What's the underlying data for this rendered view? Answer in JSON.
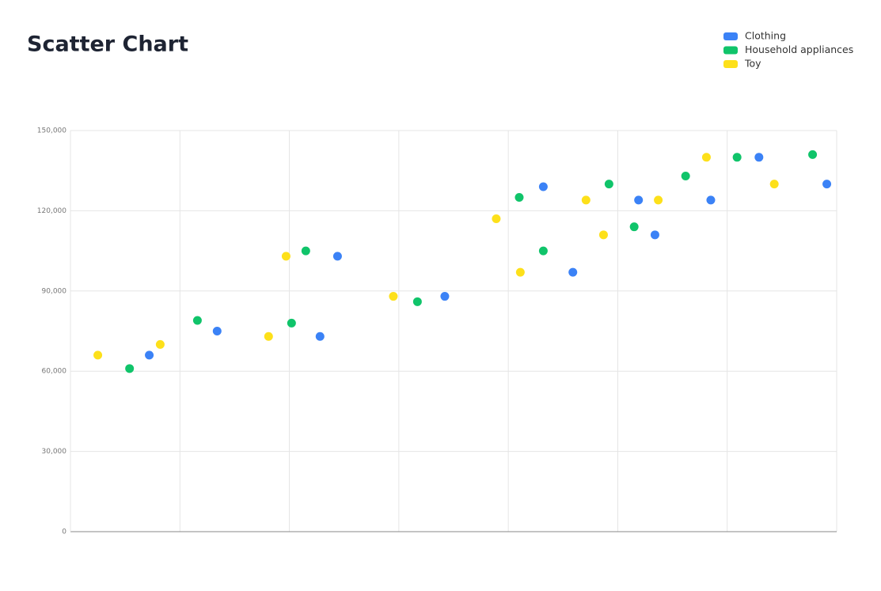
{
  "chart_data": {
    "type": "scatter",
    "title": "Scatter Chart",
    "xlim": [
      0,
      7
    ],
    "ylim": [
      0,
      150000
    ],
    "yticks": [
      0,
      {
        "value": 30000,
        "label": "30,000"
      },
      {
        "value": 60000,
        "label": "60,000"
      },
      {
        "value": 90000,
        "label": "90,000"
      },
      {
        "value": 120000,
        "label": "120,000"
      },
      {
        "value": 150000,
        "label": "150,000"
      }
    ],
    "grid": true,
    "legend": "top-right",
    "series": [
      {
        "name": "Clothing",
        "color": "#3b82f6",
        "x": [
          0.72,
          1.34,
          2.28,
          2.44,
          3.42,
          4.32,
          4.59,
          5.19,
          5.34,
          5.85,
          6.29,
          6.91
        ],
        "values": [
          66000,
          75000,
          73000,
          103000,
          88000,
          129000,
          97000,
          124000,
          111000,
          124000,
          140000,
          130000
        ]
      },
      {
        "name": "Household appliances",
        "color": "#10c46a",
        "x": [
          0.54,
          1.16,
          2.02,
          2.15,
          3.17,
          4.1,
          4.32,
          4.92,
          5.15,
          5.62,
          6.09,
          6.78
        ],
        "values": [
          61000,
          79000,
          78000,
          105000,
          86000,
          125000,
          105000,
          130000,
          114000,
          133000,
          140000,
          141000
        ]
      },
      {
        "name": "Toy",
        "color": "#fde01a",
        "x": [
          0.25,
          0.82,
          1.81,
          1.97,
          2.95,
          3.89,
          4.11,
          4.71,
          4.87,
          5.37,
          5.81,
          6.43
        ],
        "values": [
          66000,
          70000,
          73000,
          103000,
          88000,
          117000,
          97000,
          124000,
          111000,
          124000,
          140000,
          130000
        ]
      }
    ]
  }
}
